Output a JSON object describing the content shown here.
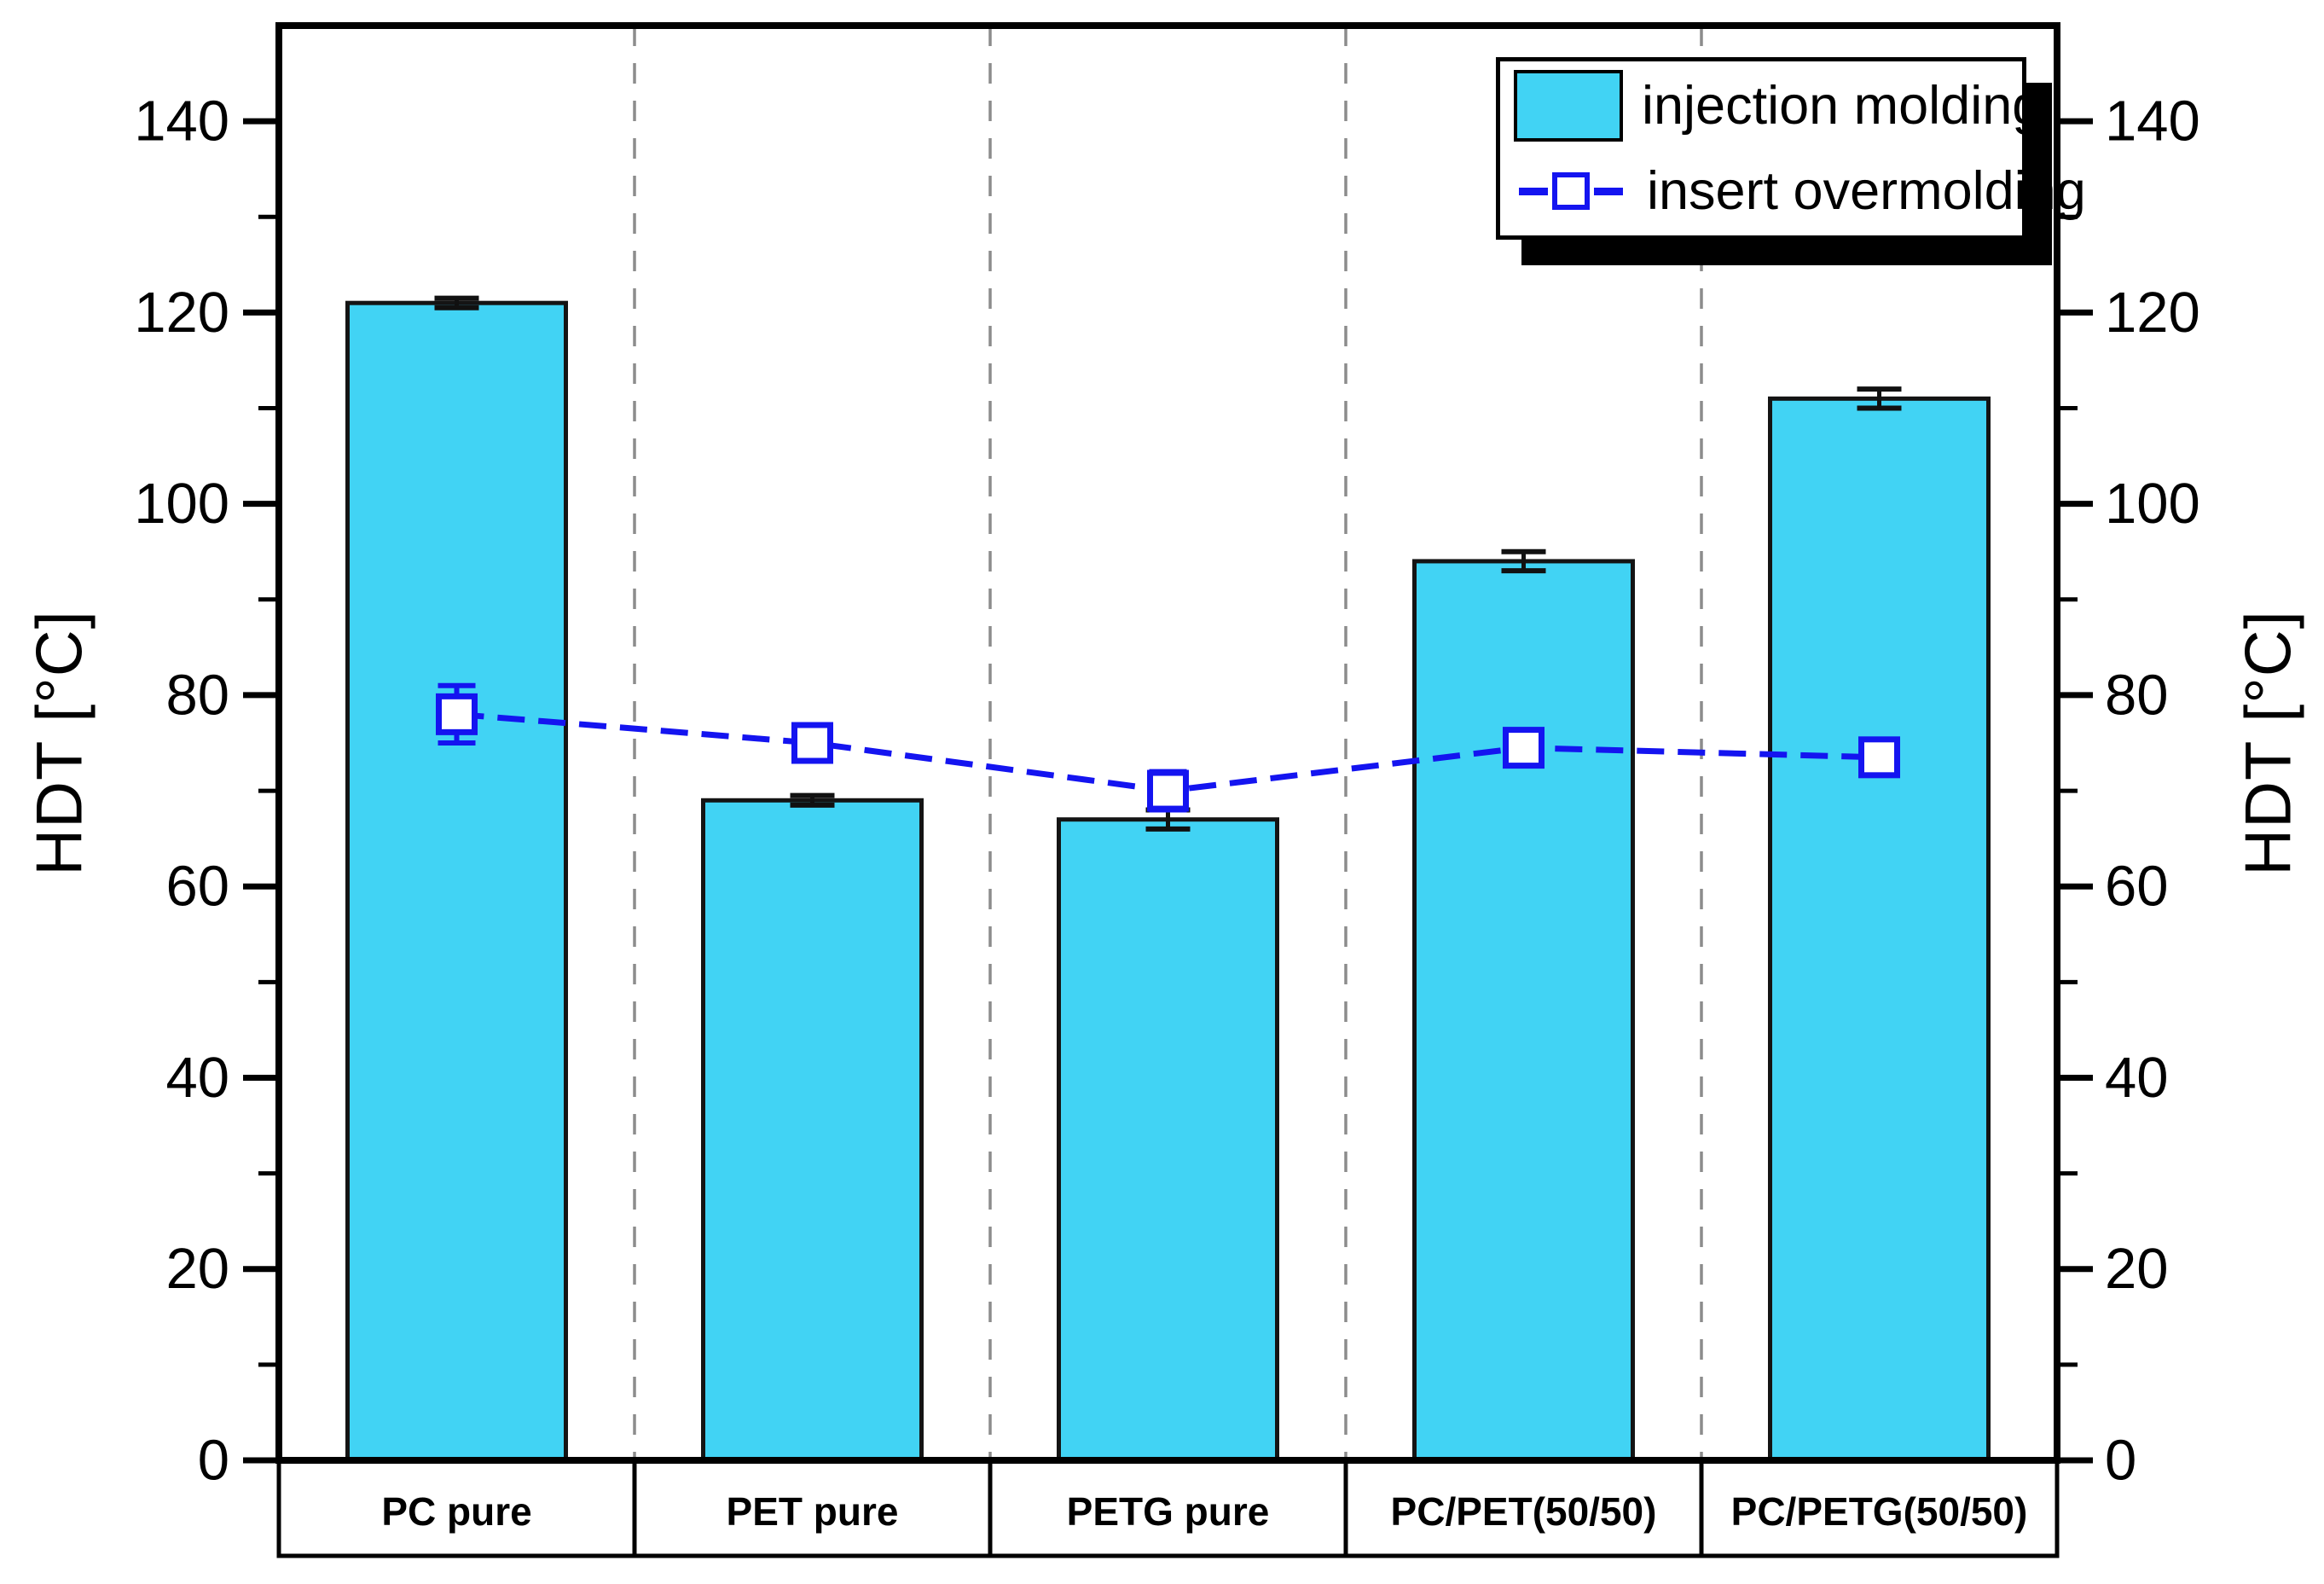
{
  "chart_data": {
    "type": "bar",
    "title": "",
    "categories": [
      "PC pure",
      "PET pure",
      "PETG pure",
      "PC/PET(50/50)",
      "PC/PETG(50/50)"
    ],
    "series": [
      {
        "name": "injection molding",
        "type": "bar",
        "color": "#41d3f4",
        "edge_color": "#141414",
        "values": [
          121,
          69,
          67,
          94,
          111
        ],
        "errors": [
          0.5,
          0.5,
          1,
          1,
          1
        ]
      },
      {
        "name": "insert overmolding",
        "type": "line",
        "color": "#1414f0",
        "marker": "open-square",
        "values": [
          78,
          75,
          70,
          74.5,
          73.5
        ],
        "errors": [
          3,
          1,
          2,
          1,
          1
        ]
      }
    ],
    "ylabel_left": "HDT [°C]",
    "ylabel_right": "HDT [°C]",
    "ylim": [
      0,
      150
    ],
    "yticks": [
      0,
      20,
      40,
      60,
      80,
      100,
      120,
      140
    ],
    "ytick_minor_step": 10,
    "grid": "vertical-dashed-category-separators",
    "separator_color": "#8c8c8c",
    "legend_position": "top-right-inside",
    "axis_color": "#000000",
    "background": "#ffffff"
  }
}
